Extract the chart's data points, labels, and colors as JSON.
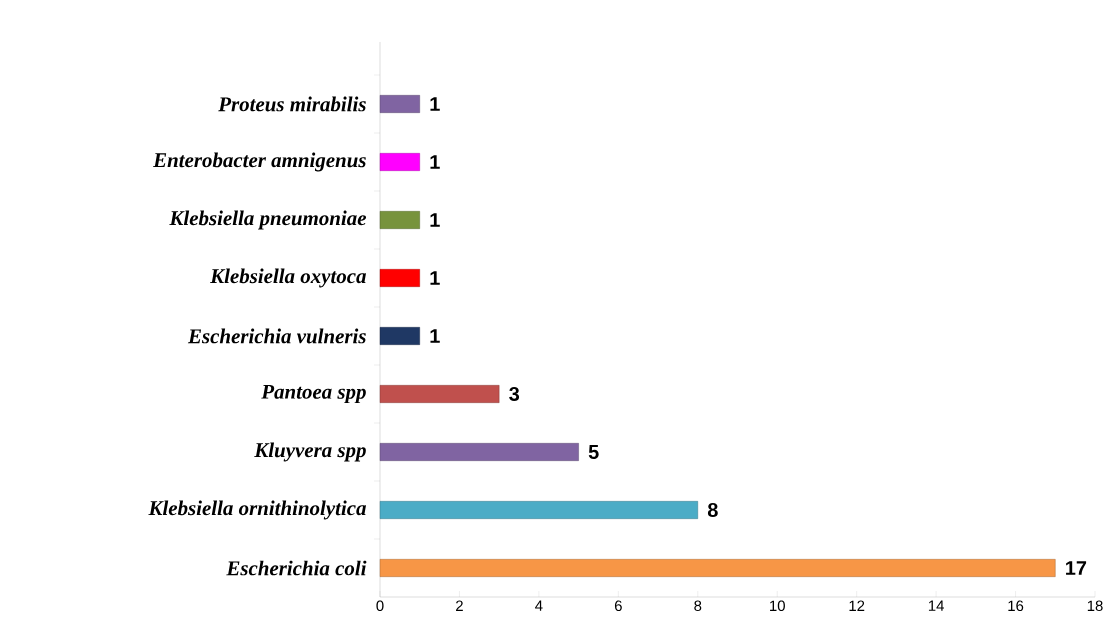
{
  "chart_data": {
    "type": "bar",
    "orientation": "horizontal",
    "categories": [
      "Proteus mirabilis",
      "Enterobacter amnigenus",
      "Klebsiella pneumoniae",
      "Klebsiella oxytoca",
      "Escherichia vulneris",
      "Pantoea spp",
      "Kluyvera spp",
      "Klebsiella ornithinolytica",
      "Escherichia coli"
    ],
    "values": [
      1,
      1,
      1,
      1,
      1,
      3,
      5,
      8,
      17
    ],
    "colors": [
      "#8064a2",
      "#ff00ff",
      "#77933c",
      "#ff0000",
      "#1f3864",
      "#c0504d",
      "#8064a2",
      "#4bacc6",
      "#f79646"
    ],
    "xlim": [
      0,
      18
    ],
    "xticks": [
      0,
      2,
      4,
      6,
      8,
      10,
      12,
      14,
      16,
      18
    ],
    "data_labels": true,
    "grid": false
  }
}
